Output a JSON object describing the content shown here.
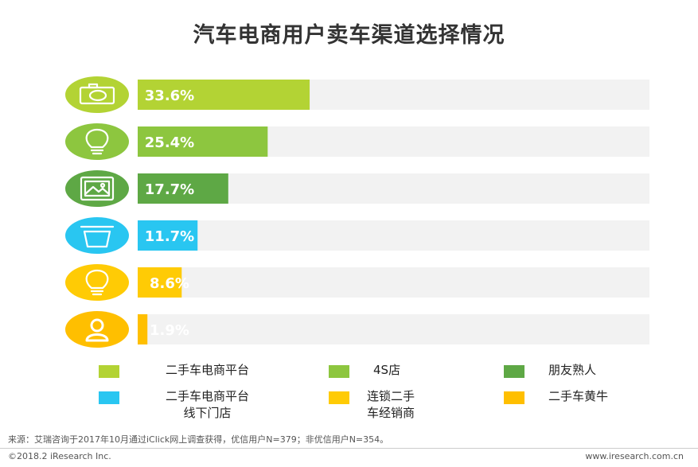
{
  "chart_data": {
    "type": "bar",
    "orientation": "horizontal",
    "title": "汽车电商用户卖车渠道选择情况",
    "categories": [
      "二手车电商平台",
      "4S店",
      "朋友熟人",
      "二手车电商平台线下门店",
      "连锁二手车经销商",
      "二手车黄牛"
    ],
    "values": [
      33.6,
      25.4,
      17.7,
      11.7,
      8.6,
      1.9
    ],
    "value_labels": [
      "33.6%",
      "25.4%",
      "17.7%",
      "11.7%",
      "8.6%",
      "1.9%"
    ],
    "xlim": [
      0,
      100
    ],
    "unit": "%",
    "colors": [
      "#b3d334",
      "#8dc63f",
      "#5ea845",
      "#29c6f1",
      "#ffcb05",
      "#ffbf00"
    ],
    "icons": [
      "camera-icon",
      "lightbulb-icon",
      "picture-icon",
      "cup-icon",
      "lightbulb-icon",
      "user-icon"
    ],
    "track_color": "#f2f2f2",
    "xlabel": "",
    "ylabel": "",
    "legend": [
      {
        "lines": [
          "二手车电商平台"
        ],
        "color": "#b3d334"
      },
      {
        "lines": [
          "4S店"
        ],
        "color": "#8dc63f"
      },
      {
        "lines": [
          "朋友熟人"
        ],
        "color": "#5ea845"
      },
      {
        "lines": [
          "二手车电商平台",
          "线下门店"
        ],
        "color": "#29c6f1"
      },
      {
        "lines": [
          "连锁二手",
          "车经销商"
        ],
        "color": "#ffcb05"
      },
      {
        "lines": [
          "二手车黄牛"
        ],
        "color": "#ffbf00"
      }
    ]
  },
  "footer": {
    "source": "来源：艾瑞咨询于2017年10月通过iClick网上调查获得，优信用户N=379；非优信用户N=354。",
    "copyright": "©2018.2 iResearch Inc.",
    "website": "www.iresearch.com.cn"
  }
}
